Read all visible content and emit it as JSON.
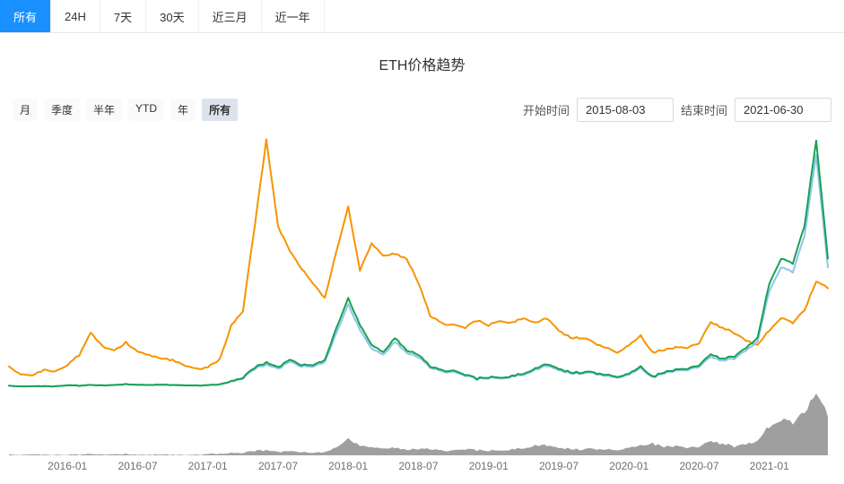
{
  "topbar": {
    "tabs": [
      {
        "name": "all",
        "label": "所有",
        "active": true
      },
      {
        "name": "24h",
        "label": "24H",
        "active": false
      },
      {
        "name": "7d",
        "label": "7天",
        "active": false
      },
      {
        "name": "30d",
        "label": "30天",
        "active": false
      },
      {
        "name": "3m",
        "label": "近三月",
        "active": false
      },
      {
        "name": "1y",
        "label": "近一年",
        "active": false
      }
    ]
  },
  "chart": {
    "title": "ETH价格趋势",
    "period_buttons": [
      {
        "name": "month",
        "label": "月",
        "active": false
      },
      {
        "name": "quarter",
        "label": "季度",
        "active": false
      },
      {
        "name": "half-year",
        "label": "半年",
        "active": false
      },
      {
        "name": "ytd",
        "label": "YTD",
        "active": false
      },
      {
        "name": "year",
        "label": "年",
        "active": false
      },
      {
        "name": "all",
        "label": "所有",
        "active": true
      }
    ],
    "start_label": "开始时间",
    "start_value": "2015-08-03",
    "end_label": "结束时间",
    "end_value": "2021-06-30"
  },
  "colors": {
    "accent": "#1890ff",
    "orange_line": "#f79400",
    "green_line": "#17a254",
    "blue_line": "#90c5e8",
    "volume_fill": "#9f9f9f"
  },
  "chart_data": {
    "type": "line",
    "title": "ETH价格趋势",
    "xlabel": "",
    "ylabel": "",
    "ylim": [
      0,
      100
    ],
    "y_axis_visible": false,
    "grid": false,
    "legend": "none",
    "x": [
      "2015-08",
      "2015-09",
      "2015-10",
      "2015-11",
      "2015-12",
      "2016-01",
      "2016-02",
      "2016-03",
      "2016-04",
      "2016-05",
      "2016-06",
      "2016-07",
      "2016-08",
      "2016-09",
      "2016-10",
      "2016-11",
      "2016-12",
      "2017-01",
      "2017-02",
      "2017-03",
      "2017-04",
      "2017-05",
      "2017-06",
      "2017-07",
      "2017-08",
      "2017-09",
      "2017-10",
      "2017-11",
      "2017-12",
      "2018-01",
      "2018-02",
      "2018-03",
      "2018-04",
      "2018-05",
      "2018-06",
      "2018-07",
      "2018-08",
      "2018-09",
      "2018-10",
      "2018-11",
      "2018-12",
      "2019-01",
      "2019-02",
      "2019-03",
      "2019-04",
      "2019-05",
      "2019-06",
      "2019-07",
      "2019-08",
      "2019-09",
      "2019-10",
      "2019-11",
      "2019-12",
      "2020-01",
      "2020-02",
      "2020-03",
      "2020-04",
      "2020-05",
      "2020-06",
      "2020-07",
      "2020-08",
      "2020-09",
      "2020-10",
      "2020-11",
      "2020-12",
      "2021-01",
      "2021-02",
      "2021-03",
      "2021-04",
      "2021-05",
      "2021-06"
    ],
    "x_ticks": [
      "2016-01",
      "2016-07",
      "2017-01",
      "2017-07",
      "2018-01",
      "2018-07",
      "2019-01",
      "2019-07",
      "2020-01",
      "2020-07",
      "2021-01"
    ],
    "series": [
      {
        "name": "orange-series",
        "kind": "line",
        "color": "#f79400",
        "values": [
          8,
          5.5,
          4.5,
          7,
          6.5,
          9,
          13,
          22,
          16.5,
          14.5,
          18,
          14.5,
          13,
          11.5,
          11,
          9,
          7.5,
          8,
          11,
          25,
          31,
          65,
          100,
          65,
          55,
          48,
          42,
          36,
          55,
          73,
          47,
          58,
          53,
          54,
          52,
          42,
          29,
          26,
          25,
          24,
          27,
          25,
          27,
          26,
          28,
          26,
          28,
          23,
          20,
          20,
          18,
          16,
          14,
          17,
          21,
          14,
          15,
          16,
          16,
          18,
          26,
          24,
          22,
          19,
          17,
          23,
          28,
          26,
          31,
          43,
          40
        ]
      },
      {
        "name": "blue-series",
        "kind": "line",
        "color": "#90c5e8",
        "values": [
          0.5,
          0.4,
          0.3,
          0.4,
          0.4,
          0.8,
          0.6,
          0.9,
          0.7,
          0.8,
          1.2,
          1,
          0.9,
          1,
          0.9,
          0.8,
          0.7,
          0.8,
          1,
          2.3,
          3.7,
          7.4,
          9.2,
          7.4,
          10.2,
          8.4,
          8.4,
          10.2,
          22,
          33.5,
          23,
          15.5,
          13,
          18.5,
          14,
          12,
          8,
          6.5,
          6,
          4.6,
          3.2,
          3.7,
          3.7,
          4.2,
          5.1,
          7,
          8.8,
          7,
          5.6,
          5.6,
          5.6,
          4.6,
          3.9,
          5.1,
          7.9,
          3.9,
          5.6,
          6.5,
          7,
          8.4,
          12,
          10.7,
          11.6,
          15,
          18.5,
          39,
          48.5,
          46.5,
          61,
          94,
          48.5
        ]
      },
      {
        "name": "green-series",
        "kind": "line",
        "color": "#17a254",
        "values": [
          0.5,
          0.4,
          0.3,
          0.4,
          0.4,
          0.8,
          0.6,
          0.9,
          0.7,
          0.8,
          1.2,
          1,
          0.9,
          1,
          0.9,
          0.8,
          0.7,
          0.8,
          1.1,
          2.5,
          4,
          8,
          10,
          8,
          11,
          9,
          9,
          11,
          24,
          36,
          25,
          17,
          14,
          20,
          15,
          13,
          8.5,
          7,
          6.5,
          5,
          3.5,
          4,
          4,
          4.5,
          5.5,
          7.5,
          9.5,
          7.5,
          6,
          6,
          6,
          5,
          4.2,
          5.5,
          8.5,
          4.2,
          6,
          7,
          7.5,
          9,
          13,
          11.5,
          12.5,
          16,
          20,
          42,
          52,
          50,
          65,
          100,
          52
        ]
      },
      {
        "name": "volume",
        "kind": "area",
        "color": "#9f9f9f",
        "values": [
          1,
          1,
          1,
          1,
          1,
          1,
          1,
          2,
          1,
          1,
          2,
          1,
          1,
          1,
          1,
          1,
          1,
          2,
          2,
          4,
          4,
          7,
          8,
          5,
          6,
          5,
          4,
          5,
          12,
          26,
          14,
          12,
          10,
          12,
          9,
          9,
          10,
          8,
          7,
          9,
          8,
          7,
          8,
          9,
          11,
          15,
          16,
          12,
          10,
          9,
          10,
          9,
          8,
          12,
          16,
          18,
          13,
          14,
          12,
          14,
          20,
          18,
          14,
          18,
          22,
          45,
          55,
          50,
          65,
          100,
          60
        ]
      }
    ]
  }
}
